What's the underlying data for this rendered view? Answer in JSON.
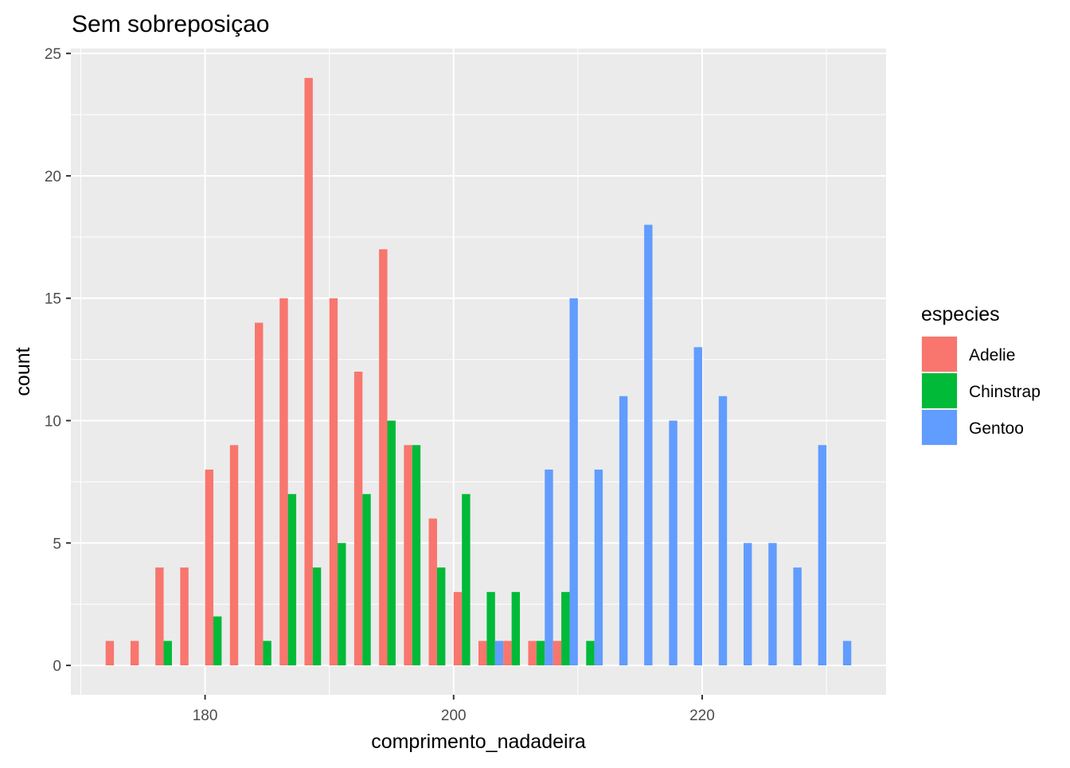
{
  "chart_data": {
    "type": "bar",
    "title": "Sem sobreposiçao",
    "xlabel": "comprimento_nadadeira",
    "ylabel": "count",
    "xlim": [
      169.2,
      234.8
    ],
    "ylim": [
      -1.2,
      25.2
    ],
    "x_ticks": [
      180,
      200,
      220
    ],
    "y_ticks": [
      0,
      5,
      10,
      15,
      20,
      25
    ],
    "grid": true,
    "bin_starts": [
      172,
      174,
      176,
      178,
      180,
      182,
      184,
      186,
      188,
      190,
      192,
      194,
      196,
      198,
      200,
      202,
      204,
      206,
      208,
      210,
      212,
      214,
      216,
      218,
      220,
      222,
      224,
      226,
      228,
      230,
      232
    ],
    "bin_width": 2,
    "legend": {
      "title": "especies",
      "position": "right"
    },
    "series": [
      {
        "name": "Adelie",
        "color": "#F8766D",
        "values": [
          1,
          1,
          4,
          4,
          8,
          9,
          14,
          15,
          24,
          15,
          12,
          17,
          9,
          6,
          3,
          1,
          1,
          1,
          1,
          0,
          0,
          0,
          0,
          0,
          0,
          0,
          0,
          0,
          0,
          0,
          0
        ]
      },
      {
        "name": "Chinstrap",
        "color": "#00BA38",
        "values": [
          0,
          0,
          1,
          0,
          2,
          0,
          1,
          7,
          4,
          5,
          7,
          10,
          9,
          4,
          7,
          3,
          3,
          1,
          3,
          1,
          0,
          0,
          0,
          0,
          0,
          0,
          0,
          0,
          0,
          0,
          0
        ]
      },
      {
        "name": "Gentoo",
        "color": "#619CFF",
        "values": [
          0,
          0,
          0,
          0,
          0,
          0,
          0,
          0,
          0,
          0,
          0,
          0,
          0,
          0,
          0,
          1,
          0,
          8,
          15,
          8,
          11,
          18,
          10,
          13,
          11,
          5,
          5,
          4,
          9,
          1,
          0
        ]
      }
    ],
    "panel_background": "#EBEBEB",
    "grid_color": "#FFFFFF"
  }
}
